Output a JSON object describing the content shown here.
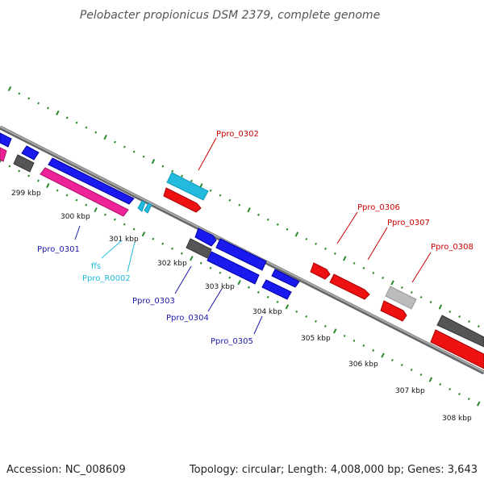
{
  "title": "Pelobacter propionicus DSM 2379, complete genome",
  "footer": {
    "accession": "Accession: NC_008609",
    "topology": "Topology: circular; Length: 4,008,000 bp; Genes: 3,643"
  },
  "colors": {
    "blue": "#1a1aee",
    "red": "#ee1111",
    "pink": "#ee2299",
    "cyan": "#22bbdd",
    "darkgray": "#555555",
    "lightgray": "#bbbbbb",
    "backbone": "#888888",
    "ticks": "#2a8a2a",
    "label_blue": "#1a1aaa",
    "label_red": "#cc0000",
    "label_cyan": "#22bbdd"
  },
  "kbp_labels": [
    "299 kbp",
    "300 kbp",
    "301 kbp",
    "302 kbp",
    "303 kbp",
    "304 kbp",
    "305 kbp",
    "306 kbp",
    "307 kbp",
    "308 kbp"
  ],
  "gene_labels": {
    "ppro_0301": "Ppro_0301",
    "ffs": "ffs",
    "ppro_r0002": "Ppro_R0002",
    "ppro_0302": "Ppro_0302",
    "ppro_0303": "Ppro_0303",
    "ppro_0304": "Ppro_0304",
    "ppro_0305": "Ppro_0305",
    "ppro_0306": "Ppro_0306",
    "ppro_0307": "Ppro_0307",
    "ppro_0308": "Ppro_0308"
  }
}
